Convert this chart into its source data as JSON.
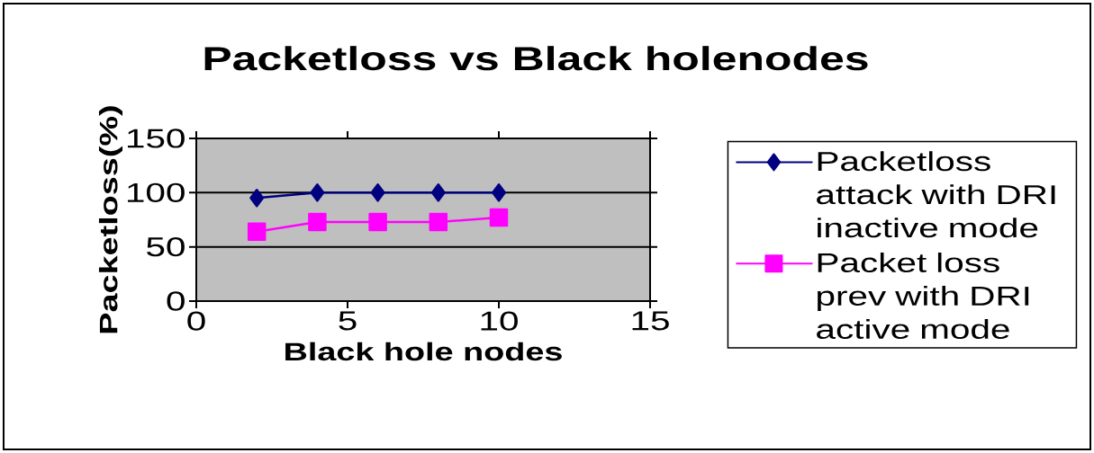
{
  "chart_data": {
    "type": "line",
    "title": "Packetloss vs Black holenodes",
    "xlabel": "Black hole nodes",
    "ylabel": "Packetloss(%)",
    "x": [
      2,
      4,
      6,
      8,
      10
    ],
    "series": [
      {
        "name": "Packetloss attack with DRI inactive mode",
        "color": "#000080",
        "marker": "diamond",
        "values": [
          95,
          100,
          100,
          100,
          100
        ]
      },
      {
        "name": "Packet loss prev with DRI active mode",
        "color": "#ff00ff",
        "marker": "square",
        "values": [
          64,
          73,
          73,
          73,
          77
        ]
      }
    ],
    "xlim": [
      0,
      15
    ],
    "xticks": [
      0,
      5,
      10,
      15
    ],
    "ylim": [
      0,
      150
    ],
    "yticks": [
      0,
      50,
      100,
      150
    ],
    "grid": "y",
    "legend": "right",
    "line_style": "solid"
  }
}
